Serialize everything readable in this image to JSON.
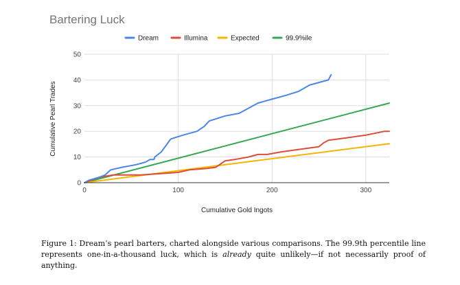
{
  "chart_data": {
    "type": "line",
    "title": "Bartering Luck",
    "xlabel": "Cumulative Gold Ingots",
    "ylabel": "Cumulative Pearl Trades",
    "xlim": [
      0,
      325
    ],
    "ylim": [
      0,
      50
    ],
    "x_ticks": [
      "0",
      "100",
      "200",
      "300"
    ],
    "y_ticks": [
      "0",
      "10",
      "20",
      "30",
      "40",
      "50"
    ],
    "grid": true,
    "legend_position": "top",
    "series": [
      {
        "name": "Dream",
        "color": "#4a86e8",
        "points": [
          [
            0,
            0
          ],
          [
            5,
            1
          ],
          [
            15,
            2
          ],
          [
            22,
            3
          ],
          [
            28,
            5
          ],
          [
            40,
            6
          ],
          [
            55,
            7
          ],
          [
            65,
            8
          ],
          [
            70,
            9
          ],
          [
            74,
            9
          ],
          [
            75,
            10
          ],
          [
            82,
            12
          ],
          [
            92,
            17
          ],
          [
            105,
            18.5
          ],
          [
            120,
            20
          ],
          [
            128,
            22
          ],
          [
            133,
            24
          ],
          [
            150,
            26
          ],
          [
            165,
            27
          ],
          [
            175,
            29
          ],
          [
            185,
            31
          ],
          [
            200,
            32.5
          ],
          [
            215,
            34
          ],
          [
            228,
            35.5
          ],
          [
            240,
            38
          ],
          [
            250,
            39
          ],
          [
            260,
            40
          ],
          [
            263,
            42
          ]
        ]
      },
      {
        "name": "Illumina",
        "color": "#dd4b39",
        "points": [
          [
            0,
            0
          ],
          [
            15,
            2
          ],
          [
            30,
            3
          ],
          [
            60,
            3
          ],
          [
            80,
            3.5
          ],
          [
            100,
            4
          ],
          [
            112,
            5
          ],
          [
            130,
            5.5
          ],
          [
            140,
            6
          ],
          [
            150,
            8.5
          ],
          [
            160,
            9
          ],
          [
            175,
            10
          ],
          [
            185,
            11
          ],
          [
            195,
            11
          ],
          [
            210,
            12
          ],
          [
            230,
            13
          ],
          [
            240,
            13.5
          ],
          [
            250,
            14
          ],
          [
            255,
            15.5
          ],
          [
            260,
            16.5
          ],
          [
            280,
            17.5
          ],
          [
            300,
            18.5
          ],
          [
            320,
            20
          ],
          [
            325,
            20
          ]
        ]
      },
      {
        "name": "Expected",
        "color": "#f4b400",
        "points": [
          [
            0,
            0
          ],
          [
            325,
            15.2
          ]
        ]
      },
      {
        "name": "99.9%ile",
        "color": "#34a853",
        "points": [
          [
            0,
            0
          ],
          [
            325,
            31
          ]
        ]
      }
    ]
  },
  "caption": {
    "part1": "Figure 1: Dream’s pearl barters, charted alongside various comparisons. The 99.9th percentile line represents one-in-a-thousand luck, which is ",
    "emphasis": "already",
    "part2": " quite unlikely—if not necessarily proof of anything."
  }
}
